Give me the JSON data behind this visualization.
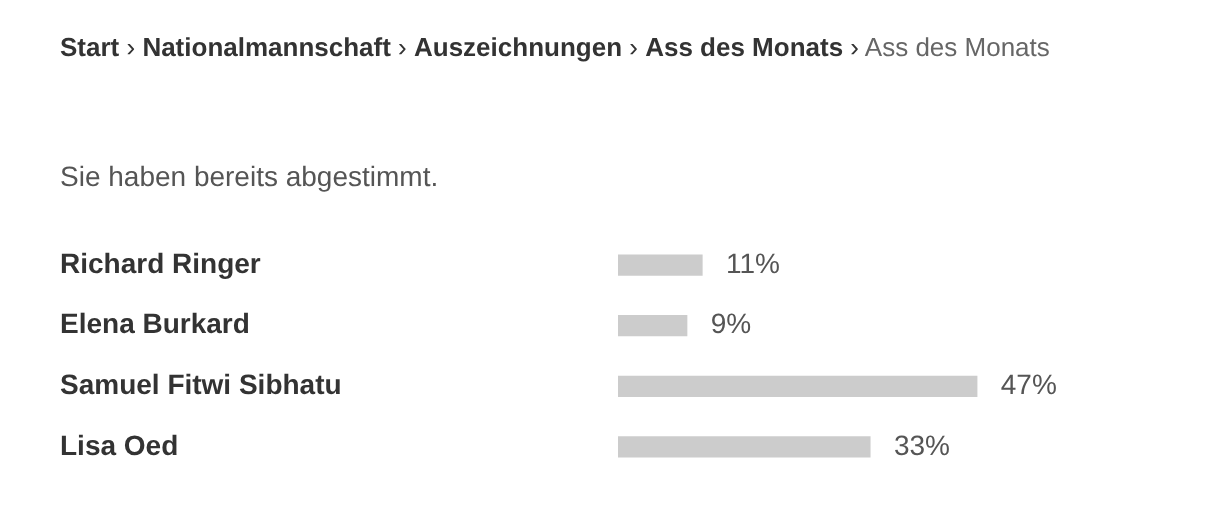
{
  "chart_data": {
    "type": "bar",
    "orientation": "horizontal",
    "title": "Start › Nationalmannschaft › Auszeichnungen › Ass des Monats › Ass des Monats",
    "subtitle": "Sie haben bereits abgestimmt.",
    "categories": [
      "Richard Ringer",
      "Elena Burkard",
      "Samuel Fitwi Sibhatu",
      "Lisa Oed"
    ],
    "values": [
      11,
      9,
      47,
      33
    ],
    "color": "#cccccc",
    "value_labels": [
      "11%",
      "9%",
      "47%",
      "33%"
    ],
    "legend": false
  }
}
